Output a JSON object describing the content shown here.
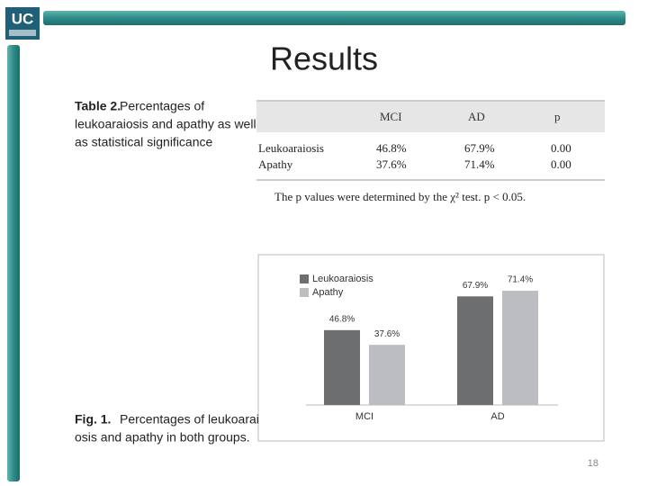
{
  "logo": "UC",
  "title": "Results",
  "table_caption": {
    "label": "Table 2.",
    "lines": [
      "Percentages of",
      "leukoaraiosis and apathy as well",
      "as statistical significance"
    ]
  },
  "table": {
    "headers": [
      "MCI",
      "AD",
      "p"
    ],
    "rows": [
      {
        "label": "Leukoaraiosis",
        "cells": [
          "46.8%",
          "67.9%",
          "0.00"
        ]
      },
      {
        "label": "Apathy",
        "cells": [
          "37.6%",
          "71.4%",
          "0.00"
        ]
      }
    ],
    "note": "The p values were determined by the χ² test. p < 0.05."
  },
  "chart_data": {
    "type": "bar",
    "categories": [
      "MCI",
      "AD"
    ],
    "series": [
      {
        "name": "Leukoaraiosis",
        "color": "#6d6e70",
        "values": [
          46.8,
          67.9
        ],
        "value_labels": [
          "46.8%",
          "67.9%"
        ]
      },
      {
        "name": "Apathy",
        "color": "#bcbdc0",
        "values": [
          37.6,
          71.4
        ],
        "value_labels": [
          "37.6%",
          "71.4%"
        ]
      }
    ],
    "ylim": [
      0,
      90
    ],
    "legend": "upper-left"
  },
  "figure_caption": {
    "label": "Fig. 1.",
    "lines": [
      "Percentages of leukoarai",
      "osis and apathy in both groups."
    ]
  },
  "page_number": "18"
}
